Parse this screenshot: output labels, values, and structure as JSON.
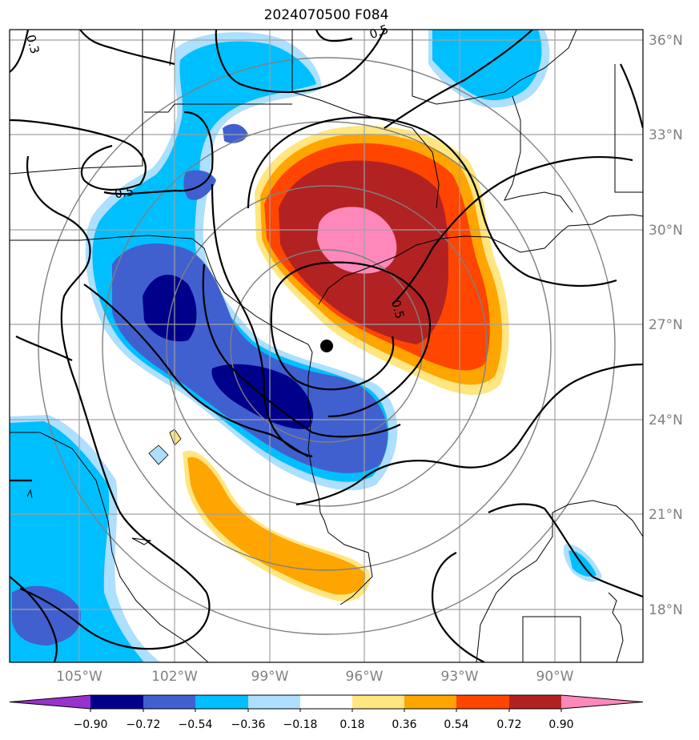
{
  "title": "2024070500 F084",
  "lat_labels": [
    "36°N",
    "33°N",
    "30°N",
    "27°N",
    "24°N",
    "21°N",
    "18°N"
  ],
  "lat_values": [
    36,
    33,
    30,
    27,
    24,
    21,
    18
  ],
  "lon_labels": [
    "105°W",
    "102°W",
    "99°W",
    "96°W",
    "93°W",
    "90°W"
  ],
  "lon_values": [
    -105,
    -102,
    -99,
    -96,
    -93,
    -90
  ],
  "contour_labels": [
    "0.3",
    "0.5",
    "0.5",
    "0.5"
  ],
  "colorbar": {
    "tick_labels": [
      "−0.90",
      "−0.72",
      "−0.54",
      "−0.36",
      "−0.18",
      "0.18",
      "0.36",
      "0.54",
      "0.72",
      "0.90"
    ],
    "levels": [
      -0.9,
      -0.72,
      -0.54,
      -0.36,
      -0.18,
      0.18,
      0.36,
      0.54,
      0.72,
      0.9
    ],
    "colors": [
      "#9932CC",
      "#00008B",
      "#4060D0",
      "#00BFFF",
      "#ADDFFF",
      "#FFFFFF",
      "#FFE680",
      "#FFA500",
      "#FF4500",
      "#B22222",
      "#FF88BB"
    ]
  },
  "storm_center": {
    "lat": 26.2,
    "lon": -97.1
  },
  "colors": {
    "grid": "#a0a0a0",
    "range_rings": "#808080",
    "contour": "#000000",
    "coast": "#000000"
  }
}
